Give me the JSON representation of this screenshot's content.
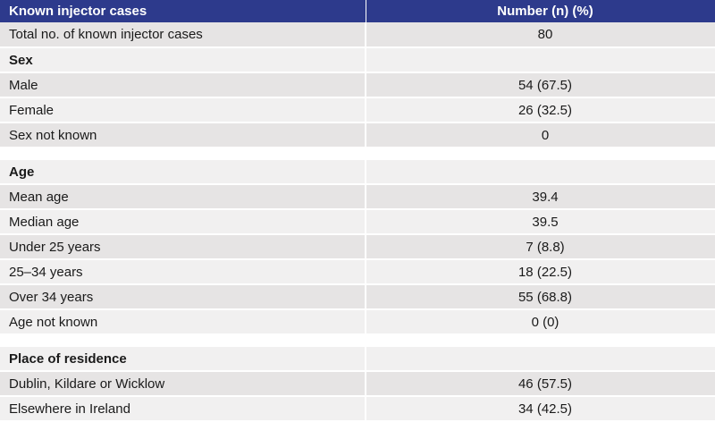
{
  "table": {
    "header": {
      "col1": "Known injector cases",
      "col2": "Number (n) (%)"
    },
    "total": {
      "label": "Total no. of known injector cases",
      "value": "80"
    },
    "sex": {
      "heading": "Sex",
      "rows": [
        {
          "label": "Male",
          "value": "54 (67.5)"
        },
        {
          "label": "Female",
          "value": "26 (32.5)"
        },
        {
          "label": "Sex not known",
          "value": "0"
        }
      ]
    },
    "age": {
      "heading": "Age",
      "rows": [
        {
          "label": "Mean age",
          "value": "39.4"
        },
        {
          "label": "Median age",
          "value": "39.5"
        },
        {
          "label": "Under 25 years",
          "value": "7 (8.8)"
        },
        {
          "label": "25–34 years",
          "value": "18 (22.5)"
        },
        {
          "label": "Over 34 years",
          "value": "55 (68.8)"
        },
        {
          "label": "Age not known",
          "value": "0 (0)"
        }
      ]
    },
    "residence": {
      "heading": "Place of residence",
      "rows": [
        {
          "label": "Dublin, Kildare or Wicklow",
          "value": "46 (57.5)"
        },
        {
          "label": "Elsewhere in Ireland",
          "value": "34 (42.5)"
        }
      ]
    }
  },
  "colors": {
    "header_bg": "#2d3a8c",
    "row_dark": "#e6e4e4",
    "row_light": "#f1f0f0"
  }
}
